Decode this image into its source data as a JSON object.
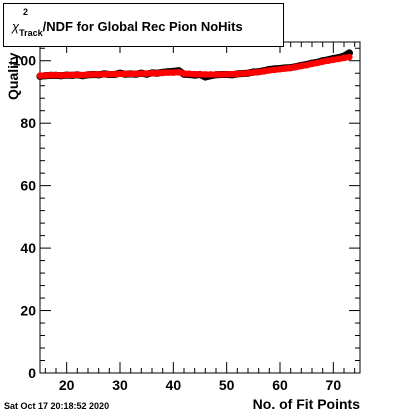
{
  "title": {
    "symbol": "χ",
    "superscript": "2",
    "subscript": "Track",
    "rest": "/NDF for Global Rec Pion NoHits"
  },
  "timestamp": "Sat Oct 17 20:18:52 2020",
  "chart_data": {
    "type": "scatter",
    "xlabel": "No. of Fit Points",
    "ylabel": "Quality",
    "xlim": [
      15,
      75
    ],
    "ylim": [
      0,
      106
    ],
    "x_ticks": [
      20,
      30,
      40,
      50,
      60,
      70
    ],
    "y_ticks": [
      0,
      20,
      40,
      60,
      80,
      100
    ],
    "grid": false,
    "colors": {
      "black_series": "#000000",
      "red_series": "#ff0000"
    },
    "series": [
      {
        "color": "black",
        "x": [
          15,
          16,
          17,
          18,
          19,
          20,
          21,
          22,
          23,
          24,
          25,
          26,
          27,
          28,
          29,
          30,
          31,
          32,
          33,
          34,
          35,
          36,
          37,
          38,
          39,
          40,
          41,
          42,
          43,
          44,
          45,
          46,
          47,
          48,
          49,
          50,
          51,
          52,
          53,
          54,
          55,
          56,
          57,
          58,
          59,
          60,
          61,
          62,
          63,
          64,
          65,
          66,
          67,
          68,
          69,
          70,
          71,
          72,
          73
        ],
        "y": [
          95,
          95.2,
          95.3,
          95.3,
          95.2,
          95.4,
          95.3,
          95.5,
          95.2,
          95.5,
          95.6,
          95.5,
          95.8,
          95.6,
          95.6,
          96,
          95.7,
          95.8,
          95.7,
          96,
          95.7,
          96.1,
          96,
          96.3,
          96.5,
          96.6,
          96.8,
          95.7,
          95.6,
          95.4,
          95.6,
          94.8,
          95.2,
          95.5,
          95.6,
          95.6,
          95.5,
          95.8,
          95.9,
          96,
          96.4,
          96.5,
          96.8,
          97.2,
          97.4,
          97.5,
          97.7,
          97.8,
          98.1,
          98.5,
          98.8,
          99.2,
          99.5,
          100,
          100.3,
          100.7,
          101,
          101.5,
          102.5
        ]
      },
      {
        "color": "red",
        "x": [
          15,
          16,
          17,
          18,
          19,
          20,
          21,
          22,
          23,
          24,
          25,
          26,
          27,
          28,
          29,
          30,
          31,
          32,
          33,
          34,
          35,
          36,
          37,
          38,
          39,
          40,
          41,
          42,
          43,
          44,
          45,
          46,
          47,
          48,
          49,
          50,
          51,
          52,
          53,
          54,
          55,
          56,
          57,
          58,
          59,
          60,
          61,
          62,
          63,
          64,
          65,
          66,
          67,
          68,
          69,
          70,
          71,
          72,
          73
        ],
        "y": [
          95.2,
          95.3,
          95.4,
          95.4,
          95.3,
          95.4,
          95.4,
          95.5,
          95.4,
          95.6,
          95.6,
          95.6,
          95.7,
          95.7,
          95.7,
          95.8,
          95.8,
          95.8,
          95.8,
          95.9,
          95.9,
          96,
          96,
          96.1,
          96.2,
          96.2,
          96.3,
          95.9,
          95.8,
          95.7,
          95.7,
          95.6,
          95.6,
          95.6,
          95.6,
          95.7,
          95.7,
          95.8,
          95.9,
          96,
          96.2,
          96.4,
          96.6,
          96.9,
          97.1,
          97.3,
          97.5,
          97.7,
          98,
          98.3,
          98.6,
          99,
          99.3,
          99.7,
          100,
          100.3,
          100.6,
          100.9,
          101.2
        ]
      }
    ]
  }
}
